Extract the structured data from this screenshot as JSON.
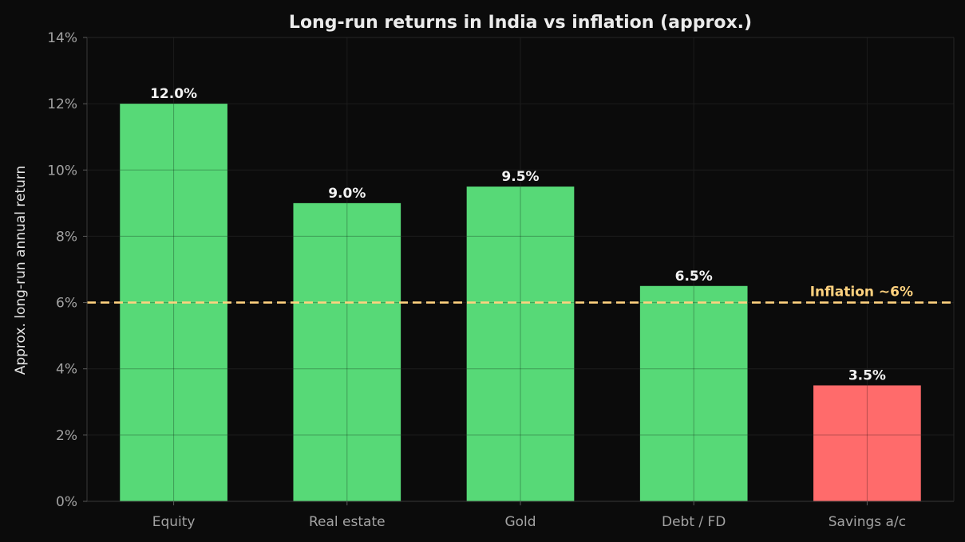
{
  "chart_data": {
    "type": "bar",
    "title": "Long-run returns in India vs inflation (approx.)",
    "xlabel": "",
    "ylabel": "Approx. long-run annual return",
    "categories": [
      "Equity",
      "Real estate",
      "Gold",
      "Debt / FD",
      "Savings a/c"
    ],
    "values": [
      12.0,
      9.0,
      9.5,
      6.5,
      3.5
    ],
    "data_labels": [
      "12.0%",
      "9.0%",
      "9.5%",
      "6.5%",
      "3.5%"
    ],
    "bar_colors": [
      "#57d977",
      "#57d977",
      "#57d977",
      "#57d977",
      "#ff6b6b"
    ],
    "ylim": [
      0,
      14
    ],
    "yticks": [
      0,
      2,
      4,
      6,
      8,
      10,
      12,
      14
    ],
    "ytick_labels": [
      "0%",
      "2%",
      "4%",
      "6%",
      "8%",
      "10%",
      "12%",
      "14%"
    ],
    "grid": true,
    "reference_line": {
      "value": 6,
      "label": "Inflation ~6%",
      "color": "#ffd27f",
      "style": "dashed"
    }
  }
}
